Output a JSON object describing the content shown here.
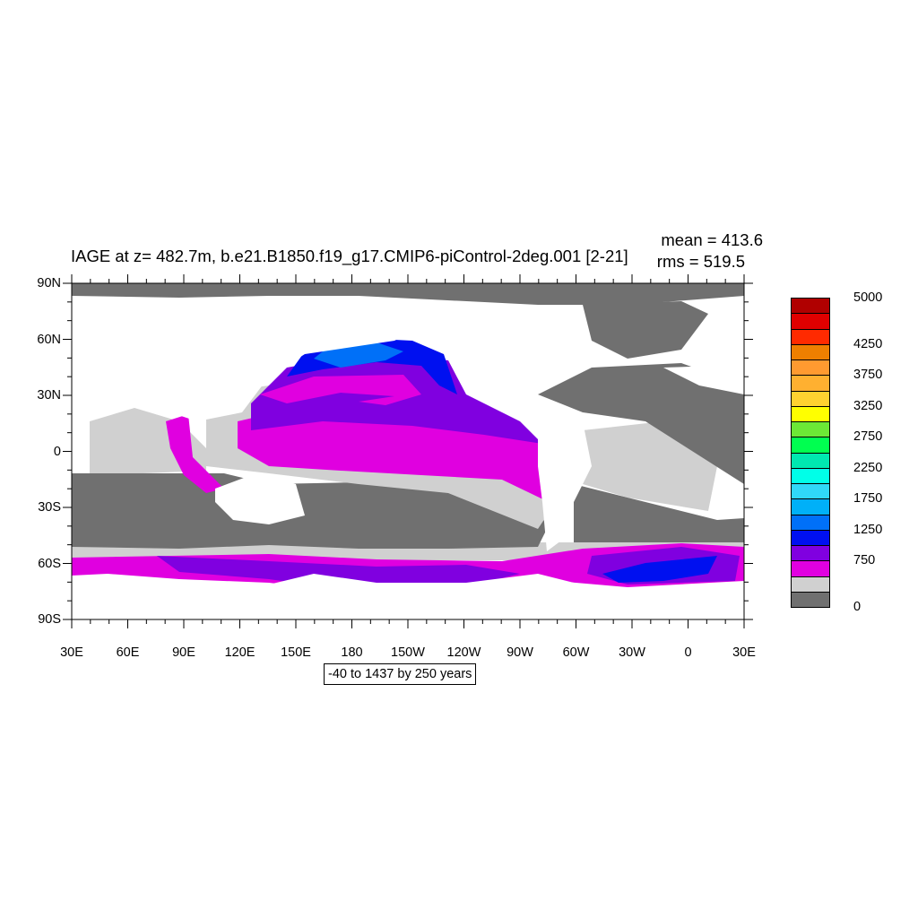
{
  "title": "IAGE at z= 482.7m, b.e21.B1850.f19_g17.CMIP6-piControl-2deg.001 [2-21]",
  "stats": {
    "mean": "mean = 413.6",
    "rms": "rms = 519.5"
  },
  "range_label": "-40 to 1437 by 250 years",
  "y_ticks": [
    "90N",
    "60N",
    "30N",
    "0",
    "30S",
    "60S",
    "90S"
  ],
  "x_ticks": [
    "30E",
    "60E",
    "90E",
    "120E",
    "150E",
    "180",
    "150W",
    "120W",
    "90W",
    "60W",
    "30W",
    "0",
    "30E"
  ],
  "colorbar": {
    "colors": [
      "#b00000",
      "#e00000",
      "#ff2a00",
      "#ef7f00",
      "#ff9a30",
      "#ffb030",
      "#ffd230",
      "#ffff00",
      "#6ce836",
      "#00ff50",
      "#00e8b0",
      "#00ffe8",
      "#30d8f8",
      "#00b0f8",
      "#0070f8",
      "#0010f0",
      "#8000e0",
      "#e000e0",
      "#d0d0d0",
      "#707070"
    ],
    "labels": [
      {
        "text": "5000",
        "index": 0
      },
      {
        "text": "4250",
        "index": 3
      },
      {
        "text": "3750",
        "index": 5
      },
      {
        "text": "3250",
        "index": 7
      },
      {
        "text": "2750",
        "index": 9
      },
      {
        "text": "2250",
        "index": 11
      },
      {
        "text": "1750",
        "index": 13
      },
      {
        "text": "1250",
        "index": 15
      },
      {
        "text": "750",
        "index": 17
      },
      {
        "text": "0",
        "index": 20
      }
    ]
  },
  "colors": {
    "land": "#707070",
    "ocean_low": "#d0d0d0",
    "ocean_750": "#e000e0",
    "ocean_1000": "#8000e0",
    "ocean_1250": "#0010f0",
    "ocean_1500": "#0070f8",
    "ocean_1750": "#00b0f8"
  }
}
